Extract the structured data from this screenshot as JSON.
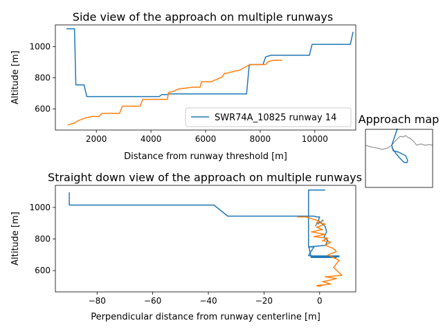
{
  "chart_data": [
    {
      "type": "line",
      "title": "Side view of the approach on multiple runways",
      "xlabel": "Distance from runway threshold [m]",
      "ylabel": "Altitude [m]",
      "xlim": [
        500,
        11500
      ],
      "ylim": [
        465,
        1140
      ],
      "xticks": [
        "2000",
        "4000",
        "6000",
        "8000",
        "10000"
      ],
      "xtick_values": [
        2000,
        4000,
        6000,
        8000,
        10000
      ],
      "yticks": [
        "600",
        "800",
        "1000"
      ],
      "ytick_values": [
        600,
        800,
        1000
      ],
      "legend": {
        "position": "lower-right",
        "entries": [
          "SWR74A_10825 runway 14"
        ]
      },
      "series": [
        {
          "name": "SWR74A_10825 runway 14",
          "color": "#1f77b4",
          "x": [
            900,
            1200,
            1250,
            1550,
            1650,
            4300,
            4400,
            4600,
            4650,
            7500,
            7600,
            8100,
            8200,
            8400,
            9800,
            9900,
            11300,
            11400
          ],
          "y": [
            1115,
            1115,
            755,
            755,
            680,
            680,
            693,
            693,
            697,
            697,
            885,
            885,
            935,
            945,
            945,
            1015,
            1015,
            1095
          ]
        },
        {
          "color": "#ff7f0e",
          "x": [
            950,
            1200,
            1300,
            1450,
            1650,
            1850,
            2100,
            2200,
            2850,
            2950,
            3600,
            3700,
            4600,
            4650,
            4800,
            5000,
            5200,
            5500,
            5800,
            5850,
            6200,
            6600,
            6700,
            6800,
            7100,
            7200,
            7600,
            7700,
            8200,
            8300,
            8500,
            8800
          ],
          "y": [
            497,
            510,
            522,
            533,
            545,
            552,
            552,
            572,
            572,
            618,
            618,
            662,
            662,
            707,
            712,
            728,
            733,
            740,
            740,
            775,
            775,
            805,
            830,
            830,
            845,
            845,
            883,
            885,
            885,
            905,
            913,
            913
          ]
        }
      ]
    },
    {
      "type": "line",
      "title": "Straight down view of the approach on multiple runways",
      "xlabel": "Perpendicular distance from runway centerline [m]",
      "ylabel": "Altitude [m]",
      "xlim": [
        -95,
        13
      ],
      "ylim": [
        465,
        1140
      ],
      "xticks": [
        "−80",
        "−60",
        "−40",
        "−20",
        "0"
      ],
      "xtick_values": [
        -80,
        -60,
        -40,
        -20,
        0
      ],
      "yticks": [
        "600",
        "800",
        "1000"
      ],
      "ytick_values": [
        600,
        800,
        1000
      ],
      "series": [
        {
          "color": "#1f77b4",
          "x": [
            -90,
            -90,
            -38,
            -33,
            -2,
            -1,
            0,
            -0.5,
            2,
            2.5,
            1.5,
            3,
            2,
            -4,
            -2,
            -3,
            -4,
            -3,
            7,
            -3,
            7,
            -3,
            6,
            -3,
            -4,
            -4,
            2
          ],
          "y": [
            1095,
            1015,
            1015,
            945,
            945,
            940,
            940,
            915,
            880,
            845,
            810,
            790,
            760,
            750,
            750,
            725,
            695,
            693,
            693,
            688,
            688,
            683,
            683,
            683,
            760,
            1110,
            1110
          ]
        },
        {
          "color": "#ff7f0e",
          "x": [
            -8,
            -5,
            0,
            -1,
            2,
            -1,
            1,
            -3,
            2,
            -2,
            3,
            1,
            4,
            2,
            5,
            6,
            3,
            7,
            5,
            8,
            2,
            6,
            4,
            1,
            4,
            1,
            0,
            -1,
            1
          ],
          "y": [
            940,
            940,
            913,
            905,
            895,
            875,
            860,
            845,
            830,
            815,
            805,
            790,
            780,
            760,
            740,
            720,
            700,
            665,
            620,
            570,
            560,
            550,
            540,
            530,
            515,
            508,
            500,
            505,
            510
          ]
        },
        {
          "color": "#808080",
          "x": [
            -1.5,
            -1,
            -0.5,
            0,
            0.5,
            1,
            1.5
          ],
          "y": [
            880,
            900,
            895,
            910,
            905,
            920,
            915
          ]
        }
      ]
    },
    {
      "type": "line",
      "title": "Approach map",
      "series": [
        {
          "color": "#808080",
          "x": [
            528,
            538,
            545,
            552,
            560,
            566,
            570,
            575,
            578,
            582,
            586,
            590,
            594,
            598,
            602,
            608,
            614,
            620,
            625
          ],
          "y": [
            210,
            213,
            214,
            216,
            214,
            210,
            205,
            200,
            197,
            198,
            196,
            199,
            201,
            205,
            210,
            208,
            210,
            209,
            210
          ]
        },
        {
          "color": "#1f77b4",
          "x": [
            574,
            570,
            566,
            568,
            576,
            586,
            589,
            588,
            584,
            578,
            572,
            566
          ],
          "y": [
            186,
            198,
            210,
            218,
            220,
            225,
            232,
            235,
            235,
            229,
            222,
            213
          ]
        }
      ]
    }
  ]
}
